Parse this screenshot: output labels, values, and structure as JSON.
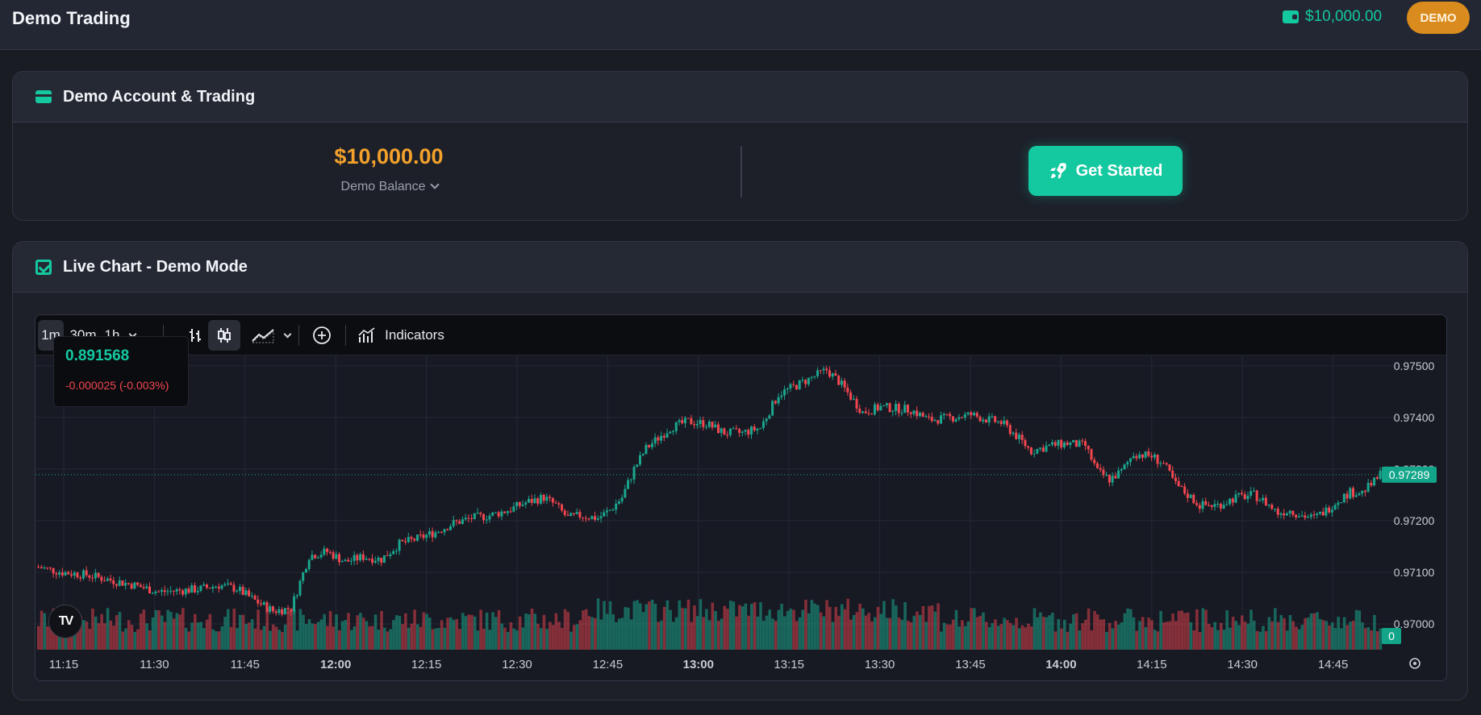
{
  "header": {
    "brand": "Demo Trading",
    "balance": "$10,000.00",
    "badge": "DEMO"
  },
  "account": {
    "title": "Demo Account & Trading",
    "balance": "$10,000.00",
    "balance_label": "Demo Balance",
    "cta": "Get Started"
  },
  "live_chart": {
    "title": "Live Chart - Demo Mode",
    "toolbar": {
      "intervals": [
        "1m",
        "30m",
        "1h"
      ],
      "indicators_label": "Indicators"
    },
    "tooltip": {
      "price": "0.891568",
      "change": "-0.000025 (-0.003%)"
    },
    "logo_text": "TV"
  },
  "colors": {
    "accent": "#14c8a0",
    "balance_orange": "#f3a12b",
    "up": "#1aa58d",
    "down": "#f2464f",
    "badge": "#d98b1d"
  },
  "chart_data": {
    "type": "candlestick",
    "x_tick_labels": [
      "11:15",
      "11:30",
      "11:45",
      "12:00",
      "12:15",
      "12:30",
      "12:45",
      "13:00",
      "13:15",
      "13:30",
      "13:45",
      "14:00",
      "14:15",
      "14:30",
      "14:45"
    ],
    "x_bold_labels": [
      "12:00",
      "13:00",
      "14:00"
    ],
    "y_tick_labels": [
      "0.97500",
      "0.97400",
      "0.97300",
      "0.97200",
      "0.97100",
      "0.97000"
    ],
    "ylim": [
      0.9695,
      0.9752
    ],
    "current_price": "0.97289",
    "volume_label": "0",
    "grid": true,
    "close_path": [
      [
        0,
        0.9711
      ],
      [
        8,
        0.971
      ],
      [
        16,
        0.97095
      ],
      [
        24,
        0.97085
      ],
      [
        32,
        0.97075
      ],
      [
        40,
        0.97062
      ],
      [
        48,
        0.97065
      ],
      [
        54,
        0.97068
      ],
      [
        60,
        0.97075
      ],
      [
        66,
        0.97068
      ],
      [
        72,
        0.97045
      ],
      [
        78,
        0.97025
      ],
      [
        84,
        0.9703
      ],
      [
        90,
        0.97132
      ],
      [
        96,
        0.9714
      ],
      [
        102,
        0.9712
      ],
      [
        108,
        0.9713
      ],
      [
        114,
        0.97125
      ],
      [
        120,
        0.97155
      ],
      [
        126,
        0.97165
      ],
      [
        132,
        0.97178
      ],
      [
        138,
        0.97195
      ],
      [
        144,
        0.97205
      ],
      [
        150,
        0.9721
      ],
      [
        156,
        0.9722
      ],
      [
        162,
        0.97235
      ],
      [
        168,
        0.97245
      ],
      [
        172,
        0.9723
      ],
      [
        176,
        0.97205
      ],
      [
        180,
        0.9721
      ],
      [
        186,
        0.97205
      ],
      [
        190,
        0.9722
      ],
      [
        194,
        0.97245
      ],
      [
        198,
        0.973
      ],
      [
        202,
        0.9734
      ],
      [
        206,
        0.9736
      ],
      [
        210,
        0.9738
      ],
      [
        216,
        0.97392
      ],
      [
        222,
        0.97388
      ],
      [
        228,
        0.9737
      ],
      [
        234,
        0.9737
      ],
      [
        240,
        0.9738
      ],
      [
        246,
        0.97445
      ],
      [
        252,
        0.97462
      ],
      [
        258,
        0.9748
      ],
      [
        262,
        0.97492
      ],
      [
        266,
        0.9747
      ],
      [
        270,
        0.9744
      ],
      [
        274,
        0.9741
      ],
      [
        280,
        0.9742
      ],
      [
        290,
        0.97415
      ],
      [
        296,
        0.97395
      ],
      [
        304,
        0.974
      ],
      [
        310,
        0.97405
      ],
      [
        316,
        0.97395
      ],
      [
        320,
        0.9739
      ],
      [
        324,
        0.9737
      ],
      [
        330,
        0.97335
      ],
      [
        336,
        0.97345
      ],
      [
        342,
        0.9735
      ],
      [
        348,
        0.97345
      ],
      [
        352,
        0.97295
      ],
      [
        356,
        0.9728
      ],
      [
        360,
        0.97295
      ],
      [
        364,
        0.9733
      ],
      [
        370,
        0.97325
      ],
      [
        374,
        0.9731
      ],
      [
        378,
        0.9727
      ],
      [
        382,
        0.9725
      ],
      [
        386,
        0.9723
      ],
      [
        392,
        0.9723
      ],
      [
        398,
        0.97245
      ],
      [
        404,
        0.9725
      ],
      [
        408,
        0.97235
      ],
      [
        412,
        0.97215
      ],
      [
        416,
        0.9722
      ],
      [
        420,
        0.9721
      ],
      [
        424,
        0.97205
      ],
      [
        428,
        0.9722
      ],
      [
        432,
        0.9724
      ],
      [
        436,
        0.97255
      ],
      [
        440,
        0.97255
      ],
      [
        444,
        0.97275
      ],
      [
        446,
        0.9729
      ]
    ]
  }
}
